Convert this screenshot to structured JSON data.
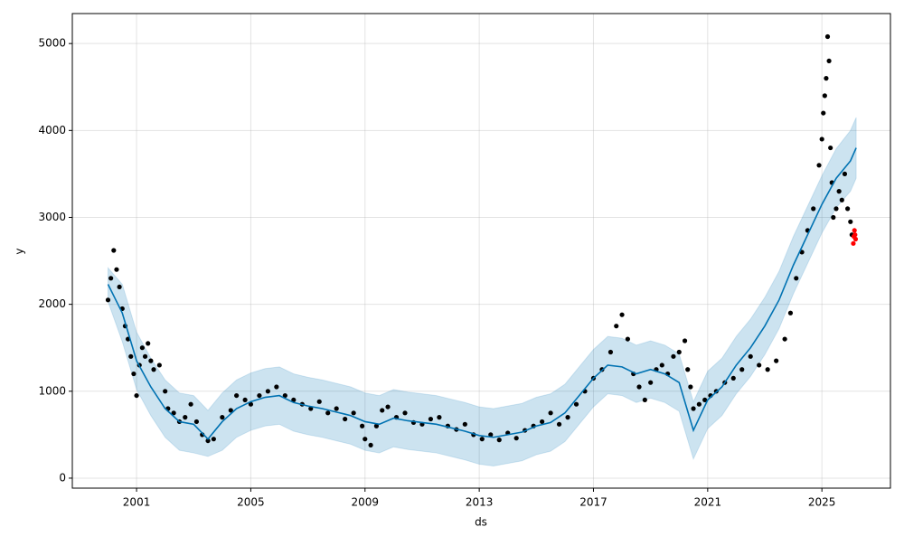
{
  "chart_data": {
    "type": "forecast",
    "xlabel": "ds",
    "ylabel": "y",
    "xlim": [
      1998.75,
      2027.4
    ],
    "ylim": [
      -115,
      5345
    ],
    "xticks": [
      2001,
      2005,
      2009,
      2013,
      2017,
      2021,
      2025
    ],
    "yticks": [
      0,
      1000,
      2000,
      3000,
      4000,
      5000
    ],
    "grid": true,
    "forecast": {
      "color": "#0072b2",
      "band_color": "#0072b2",
      "x": [
        2000.0,
        2000.5,
        2001.0,
        2001.5,
        2002.0,
        2002.5,
        2003.0,
        2003.5,
        2004.0,
        2004.5,
        2005.0,
        2005.5,
        2006.0,
        2006.5,
        2007.0,
        2007.5,
        2008.0,
        2008.5,
        2009.0,
        2009.5,
        2010.0,
        2010.5,
        2011.0,
        2011.5,
        2012.0,
        2012.5,
        2013.0,
        2013.5,
        2014.0,
        2014.5,
        2015.0,
        2015.5,
        2016.0,
        2016.5,
        2017.0,
        2017.5,
        2018.0,
        2018.5,
        2019.0,
        2019.5,
        2020.0,
        2020.5,
        2021.0,
        2021.5,
        2022.0,
        2022.5,
        2023.0,
        2023.5,
        2024.0,
        2024.5,
        2025.0,
        2025.5,
        2026.0,
        2026.2
      ],
      "values": [
        2230,
        1900,
        1350,
        1050,
        800,
        650,
        620,
        450,
        650,
        800,
        880,
        930,
        950,
        870,
        830,
        800,
        760,
        720,
        650,
        620,
        690,
        660,
        640,
        620,
        580,
        540,
        490,
        470,
        500,
        530,
        600,
        640,
        750,
        950,
        1150,
        1300,
        1280,
        1200,
        1250,
        1200,
        1100,
        550,
        900,
        1050,
        1300,
        1500,
        1750,
        2050,
        2450,
        2800,
        3150,
        3450,
        3650,
        3800
      ],
      "upper": [
        2420,
        2230,
        1680,
        1380,
        1130,
        980,
        950,
        780,
        980,
        1130,
        1210,
        1260,
        1280,
        1200,
        1160,
        1130,
        1090,
        1050,
        980,
        950,
        1020,
        990,
        970,
        950,
        910,
        870,
        820,
        800,
        830,
        860,
        930,
        970,
        1080,
        1280,
        1480,
        1630,
        1610,
        1530,
        1580,
        1530,
        1430,
        880,
        1230,
        1380,
        1630,
        1830,
        2080,
        2380,
        2780,
        3130,
        3480,
        3790,
        4000,
        4150
      ],
      "lower": [
        2030,
        1570,
        1020,
        720,
        470,
        320,
        290,
        250,
        320,
        470,
        550,
        600,
        620,
        540,
        500,
        470,
        430,
        390,
        320,
        290,
        360,
        330,
        310,
        290,
        250,
        210,
        160,
        140,
        170,
        200,
        270,
        310,
        420,
        620,
        820,
        970,
        950,
        870,
        920,
        870,
        770,
        220,
        570,
        720,
        970,
        1170,
        1420,
        1720,
        2120,
        2470,
        2820,
        3110,
        3300,
        3450
      ]
    },
    "observed": {
      "color": "#000000",
      "x": [
        2000.0,
        2000.1,
        2000.2,
        2000.3,
        2000.4,
        2000.5,
        2000.6,
        2000.7,
        2000.8,
        2000.9,
        2001.0,
        2001.1,
        2001.2,
        2001.3,
        2001.4,
        2001.5,
        2001.6,
        2001.8,
        2002.0,
        2002.1,
        2002.3,
        2002.5,
        2002.7,
        2002.9,
        2003.1,
        2003.3,
        2003.5,
        2003.7,
        2004.0,
        2004.3,
        2004.5,
        2004.8,
        2005.0,
        2005.3,
        2005.6,
        2005.9,
        2006.2,
        2006.5,
        2006.8,
        2007.1,
        2007.4,
        2007.7,
        2008.0,
        2008.3,
        2008.6,
        2008.9,
        2009.0,
        2009.2,
        2009.4,
        2009.6,
        2009.8,
        2010.1,
        2010.4,
        2010.7,
        2011.0,
        2011.3,
        2011.6,
        2011.9,
        2012.2,
        2012.5,
        2012.8,
        2013.1,
        2013.4,
        2013.7,
        2014.0,
        2014.3,
        2014.6,
        2014.9,
        2015.2,
        2015.5,
        2015.8,
        2016.1,
        2016.4,
        2016.7,
        2017.0,
        2017.3,
        2017.6,
        2017.8,
        2018.0,
        2018.2,
        2018.4,
        2018.6,
        2018.8,
        2019.0,
        2019.2,
        2019.4,
        2019.6,
        2019.8,
        2020.0,
        2020.2,
        2020.3,
        2020.4,
        2020.5,
        2020.7,
        2020.9,
        2021.1,
        2021.3,
        2021.6,
        2021.9,
        2022.2,
        2022.5,
        2022.8,
        2023.1,
        2023.4,
        2023.7,
        2023.9,
        2024.1,
        2024.3,
        2024.5,
        2024.7,
        2024.9,
        2025.0,
        2025.05,
        2025.1,
        2025.15,
        2025.2,
        2025.25,
        2025.3,
        2025.35,
        2025.4,
        2025.5,
        2025.6,
        2025.7,
        2025.8,
        2025.9,
        2026.0,
        2026.05
      ],
      "values": [
        2050,
        2300,
        2620,
        2400,
        2200,
        1950,
        1750,
        1600,
        1400,
        1200,
        950,
        1300,
        1500,
        1400,
        1550,
        1350,
        1250,
        1300,
        1000,
        800,
        750,
        650,
        700,
        850,
        650,
        500,
        430,
        450,
        700,
        780,
        950,
        900,
        850,
        950,
        1000,
        1050,
        950,
        900,
        850,
        800,
        880,
        750,
        800,
        680,
        750,
        600,
        450,
        380,
        600,
        780,
        820,
        700,
        750,
        640,
        620,
        680,
        700,
        600,
        560,
        620,
        500,
        450,
        500,
        440,
        520,
        460,
        550,
        600,
        650,
        750,
        620,
        700,
        850,
        1000,
        1150,
        1250,
        1450,
        1750,
        1880,
        1600,
        1200,
        1050,
        900,
        1100,
        1250,
        1300,
        1200,
        1400,
        1450,
        1580,
        1250,
        1050,
        800,
        850,
        900,
        950,
        1000,
        1100,
        1150,
        1250,
        1400,
        1300,
        1250,
        1350,
        1600,
        1900,
        2300,
        2600,
        2850,
        3100,
        3600,
        3900,
        4200,
        4400,
        4600,
        5080,
        4800,
        3800,
        3400,
        3000,
        3100,
        3300,
        3200,
        3500,
        3100,
        2950,
        2800
      ]
    },
    "test": {
      "color": "#ff0000",
      "x": [
        2026.1,
        2026.12,
        2026.14,
        2026.16,
        2026.18
      ],
      "values": [
        2700,
        2780,
        2850,
        2800,
        2750
      ]
    }
  }
}
